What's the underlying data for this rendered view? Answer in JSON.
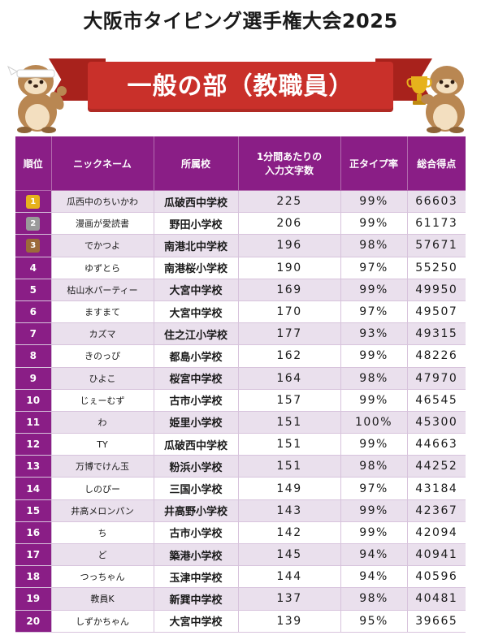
{
  "title": "大阪市タイピング選手権大会2025",
  "banner": "一般の部（教職員）",
  "headers": {
    "rank": "順位",
    "nickname": "ニックネーム",
    "school": "所属校",
    "chars_line1": "1分間あたりの",
    "chars_line2": "入力文字数",
    "accuracy": "正タイプ率",
    "score": "総合得点"
  },
  "colors": {
    "header_purple": "#8a1e86",
    "ribbon_red": "#c9302a",
    "row_tint": "#eae0ed"
  },
  "rows": [
    {
      "rank": "1",
      "nickname": "瓜西中のちいかわ",
      "school": "瓜破西中学校",
      "chars": "225",
      "accuracy": "99%",
      "score": "66603"
    },
    {
      "rank": "2",
      "nickname": "漫画が愛読書",
      "school": "野田小学校",
      "chars": "206",
      "accuracy": "99%",
      "score": "61173"
    },
    {
      "rank": "3",
      "nickname": "でかつよ",
      "school": "南港北中学校",
      "chars": "196",
      "accuracy": "98%",
      "score": "57671"
    },
    {
      "rank": "4",
      "nickname": "ゆずとら",
      "school": "南港桜小学校",
      "chars": "190",
      "accuracy": "97%",
      "score": "55250"
    },
    {
      "rank": "5",
      "nickname": "枯山水パーティー",
      "school": "大宮中学校",
      "chars": "169",
      "accuracy": "99%",
      "score": "49950"
    },
    {
      "rank": "6",
      "nickname": "ますまて",
      "school": "大宮中学校",
      "chars": "170",
      "accuracy": "97%",
      "score": "49507"
    },
    {
      "rank": "7",
      "nickname": "カズマ",
      "school": "住之江小学校",
      "chars": "177",
      "accuracy": "93%",
      "score": "49315"
    },
    {
      "rank": "8",
      "nickname": "きのっぴ",
      "school": "都島小学校",
      "chars": "162",
      "accuracy": "99%",
      "score": "48226"
    },
    {
      "rank": "9",
      "nickname": "ひよこ",
      "school": "桜宮中学校",
      "chars": "164",
      "accuracy": "98%",
      "score": "47970"
    },
    {
      "rank": "10",
      "nickname": "じぇーむず",
      "school": "古市小学校",
      "chars": "157",
      "accuracy": "99%",
      "score": "46545"
    },
    {
      "rank": "11",
      "nickname": "わ",
      "school": "姫里小学校",
      "chars": "151",
      "accuracy": "100%",
      "score": "45300"
    },
    {
      "rank": "12",
      "nickname": "TY",
      "school": "瓜破西中学校",
      "chars": "151",
      "accuracy": "99%",
      "score": "44663"
    },
    {
      "rank": "13",
      "nickname": "万博でけん玉",
      "school": "粉浜小学校",
      "chars": "151",
      "accuracy": "98%",
      "score": "44252"
    },
    {
      "rank": "14",
      "nickname": "しのぴー",
      "school": "三国小学校",
      "chars": "149",
      "accuracy": "97%",
      "score": "43184"
    },
    {
      "rank": "15",
      "nickname": "井高メロンパン",
      "school": "井高野小学校",
      "chars": "143",
      "accuracy": "99%",
      "score": "42367"
    },
    {
      "rank": "16",
      "nickname": "ち",
      "school": "古市小学校",
      "chars": "142",
      "accuracy": "99%",
      "score": "42094"
    },
    {
      "rank": "17",
      "nickname": "ど",
      "school": "築港小学校",
      "chars": "145",
      "accuracy": "94%",
      "score": "40941"
    },
    {
      "rank": "18",
      "nickname": "つっちゃん",
      "school": "玉津中学校",
      "chars": "144",
      "accuracy": "94%",
      "score": "40596"
    },
    {
      "rank": "19",
      "nickname": "教員K",
      "school": "新巽中学校",
      "chars": "137",
      "accuracy": "98%",
      "score": "40481"
    },
    {
      "rank": "20",
      "nickname": "しずかちゃん",
      "school": "大宮中学校",
      "chars": "139",
      "accuracy": "95%",
      "score": "39665"
    }
  ]
}
